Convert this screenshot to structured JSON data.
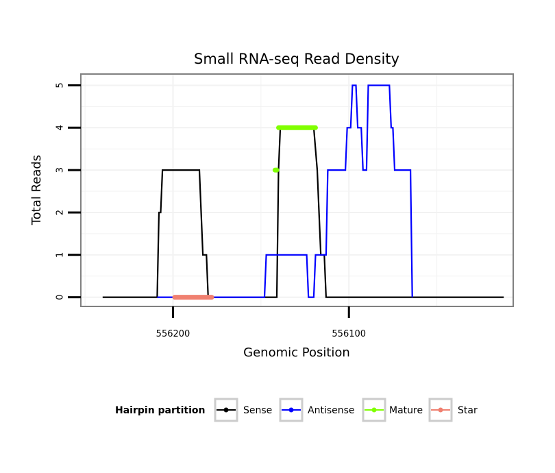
{
  "chart_data": {
    "type": "line",
    "title": "Small RNA-seq Read Density",
    "xlabel": "Genomic Position",
    "ylabel": "Total Reads",
    "x_reversed": true,
    "xlim": [
      556252,
      556007
    ],
    "ylim": [
      -0.2,
      5.25
    ],
    "xticks": [
      556200,
      556100
    ],
    "xtick_labels": [
      "556200",
      "556100"
    ],
    "yticks": [
      0,
      1,
      2,
      3,
      4,
      5
    ],
    "ytick_labels": [
      "0",
      "1",
      "2",
      "3",
      "4",
      "5"
    ],
    "grid": true,
    "legend": {
      "title": "Hairpin partition",
      "placement": "bottom",
      "entries": [
        "Sense",
        "Antisense",
        "Mature",
        "Star"
      ]
    },
    "series": [
      {
        "name": "Sense",
        "color": "#000000",
        "kind": "line",
        "points": [
          [
            556240,
            0
          ],
          [
            556209,
            0
          ],
          [
            556208,
            2
          ],
          [
            556207,
            2
          ],
          [
            556206,
            3
          ],
          [
            556185,
            3
          ],
          [
            556183,
            1
          ],
          [
            556181,
            1
          ],
          [
            556180,
            0
          ],
          [
            556141,
            0
          ],
          [
            556140,
            3
          ],
          [
            556139,
            4
          ],
          [
            556120,
            4
          ],
          [
            556118,
            3
          ],
          [
            556116,
            1
          ],
          [
            556114,
            1
          ],
          [
            556113,
            0
          ],
          [
            556012,
            0
          ]
        ]
      },
      {
        "name": "Antisense",
        "color": "#0000ff",
        "kind": "line",
        "points": [
          [
            556209,
            0
          ],
          [
            556180,
            0
          ],
          [
            556180,
            0
          ],
          [
            556148,
            0
          ],
          [
            556147,
            1
          ],
          [
            556124,
            1
          ],
          [
            556123,
            0
          ],
          [
            556120,
            0
          ],
          [
            556119,
            1
          ],
          [
            556113,
            1
          ],
          [
            556112,
            3
          ],
          [
            556102,
            3
          ],
          [
            556101,
            4
          ],
          [
            556099,
            4
          ],
          [
            556098,
            5
          ],
          [
            556096,
            5
          ],
          [
            556095,
            4
          ],
          [
            556093,
            4
          ],
          [
            556092,
            3
          ],
          [
            556090,
            3
          ],
          [
            556089,
            5
          ],
          [
            556077,
            5
          ],
          [
            556076,
            4
          ],
          [
            556075,
            4
          ],
          [
            556074,
            3
          ],
          [
            556065,
            3
          ],
          [
            556064,
            0
          ]
        ]
      },
      {
        "name": "Mature",
        "color": "#80ff00",
        "kind": "segments",
        "segments": [
          [
            [
              556142,
              3
            ],
            [
              556141,
              3
            ]
          ],
          [
            [
              556140,
              4
            ],
            [
              556119,
              4
            ]
          ]
        ]
      },
      {
        "name": "Star",
        "color": "#f08070",
        "kind": "segments",
        "segments": [
          [
            [
              556199,
              0
            ],
            [
              556178,
              0
            ]
          ]
        ]
      }
    ]
  }
}
